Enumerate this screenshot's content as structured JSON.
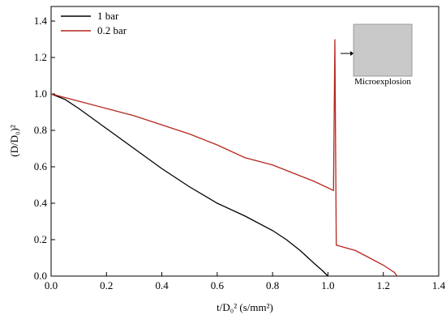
{
  "chart_data": {
    "type": "line",
    "x_label": "t/D₀² (s/mm²)",
    "y_label": "(D/D₀)²",
    "annotation": "Microexplosion",
    "xlim": [
      0,
      1.4
    ],
    "ylim": [
      0,
      1.48
    ],
    "xticks": [
      {
        "value": 0,
        "label": "0.0"
      },
      0.2,
      0.4,
      0.6,
      0.8,
      {
        "value": 1,
        "label": "1.0"
      },
      1.2,
      1.4
    ],
    "yticks": [
      {
        "value": 0,
        "label": "0.0"
      },
      0.2,
      0.4,
      0.6,
      0.8,
      {
        "value": 1,
        "label": "1.0"
      },
      1.2,
      1.4
    ],
    "legend": "upper left",
    "series": [
      {
        "name": "1 bar",
        "color": "#000000",
        "x": [
          0,
          0.05,
          0.1,
          0.2,
          0.3,
          0.4,
          0.5,
          0.6,
          0.7,
          0.8,
          0.85,
          0.9,
          0.95,
          0.98,
          1.0
        ],
        "values": [
          1.0,
          0.97,
          0.92,
          0.81,
          0.7,
          0.59,
          0.49,
          0.4,
          0.33,
          0.25,
          0.2,
          0.14,
          0.07,
          0.03,
          0.0
        ]
      },
      {
        "name": "0.2 bar",
        "color": "#b5261e",
        "x": [
          0,
          0.1,
          0.2,
          0.3,
          0.4,
          0.48,
          0.5,
          0.6,
          0.7,
          0.8,
          0.9,
          0.95,
          1.02,
          1.025,
          1.03,
          1.1,
          1.15,
          1.2,
          1.24,
          1.25
        ],
        "values": [
          1.0,
          0.96,
          0.92,
          0.88,
          0.83,
          0.79,
          0.78,
          0.72,
          0.65,
          0.61,
          0.55,
          0.52,
          0.47,
          1.3,
          0.17,
          0.14,
          0.1,
          0.06,
          0.02,
          0.0
        ]
      }
    ]
  }
}
